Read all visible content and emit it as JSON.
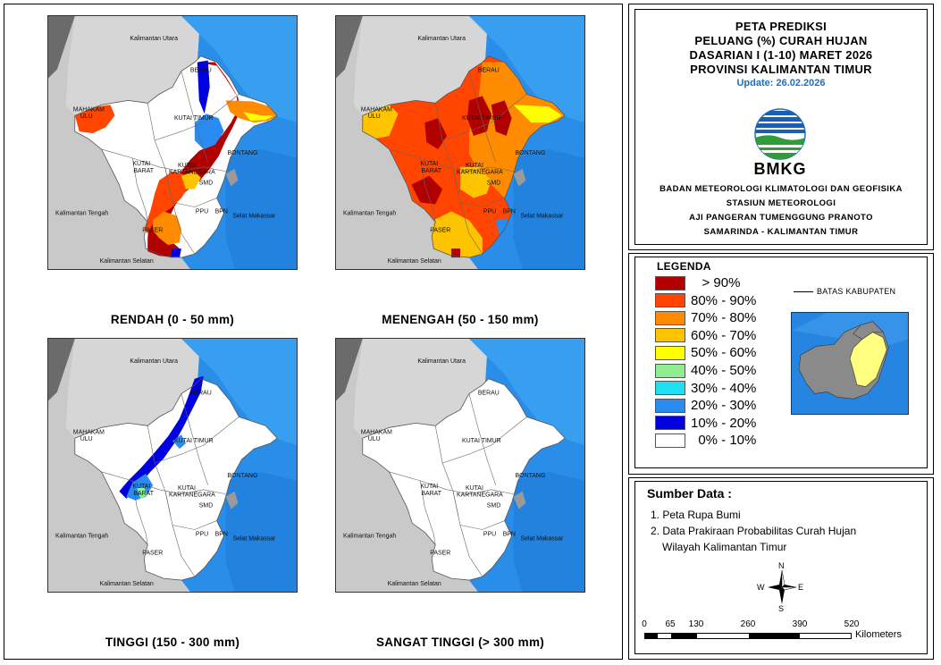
{
  "maps": [
    {
      "title": "RENDAH (0 - 50 mm)",
      "scheme": "rendah"
    },
    {
      "title": "MENENGAH (50 - 150 mm)",
      "scheme": "menengah"
    },
    {
      "title": "TINGGI (150 - 300 mm)",
      "scheme": "tinggi"
    },
    {
      "title": "SANGAT TINGGI (> 300 mm)",
      "scheme": "sangat"
    }
  ],
  "map_labels": {
    "kaltara": "Kalimantan Utara",
    "berau": "BERAU",
    "mahakam_1": "MAHAKAM",
    "mahakam_2": "ULU",
    "kutai_timur": "KUTAI TIMUR",
    "bontang": "BONTANG",
    "kutai_kart_1": "KUTAI",
    "kutai_kart_2": "KARTANEGARA",
    "kutai_barat_1": "KUTAI",
    "kutai_barat_2": "BARAT",
    "smd": "SMD",
    "ppu": "PPU",
    "bpn": "BPN",
    "kalteng": "Kalimantan Tengah",
    "selat": "Selat Makassar",
    "paser": "PASER",
    "kalsel": "Kalimantan Selatan"
  },
  "title": {
    "line1": "PETA PREDIKSI",
    "line2": "PELUANG (%) CURAH HUJAN",
    "line3": "DASARIAN I (1-10) MARET 2026",
    "line4": "PROVINSI KALIMANTAN TIMUR",
    "update": "Update: 26.02.2026"
  },
  "logo_text": "BMKG",
  "agency": {
    "line1": "BADAN METEOROLOGI KLIMATOLOGI DAN GEOFISIKA",
    "line2": "STASIUN METEOROLOGI",
    "line3": "AJI PANGERAN TUMENGGUNG PRANOTO",
    "line4": "SAMARINDA - KALIMANTAN TIMUR"
  },
  "legend": {
    "title": "LEGENDA",
    "items": [
      {
        "label": "   > 90%",
        "color": "#b00000"
      },
      {
        "label": "80% - 90%",
        "color": "#ff4500"
      },
      {
        "label": "70% - 80%",
        "color": "#ff8c00"
      },
      {
        "label": "60% - 70%",
        "color": "#ffc400"
      },
      {
        "label": "50% - 60%",
        "color": "#ffff00"
      },
      {
        "label": "40% - 50%",
        "color": "#90ee90"
      },
      {
        "label": "30% - 40%",
        "color": "#1fe0f0"
      },
      {
        "label": "20% - 30%",
        "color": "#2a8cf0"
      },
      {
        "label": "10% - 20%",
        "color": "#0000e0"
      },
      {
        "label": "  0% - 10%",
        "color": "#ffffff"
      }
    ],
    "boundary_label": "BATAS KABUPATEN"
  },
  "sources": {
    "title": "Sumber Data :",
    "item1": "1.  Peta Rupa Bumi",
    "item2": "2.  Data Prakiraan Probabilitas Curah Hujan",
    "item2b": "Wilayah Kalimantan Timur"
  },
  "compass": {
    "n": "N",
    "s": "S",
    "e": "E",
    "w": "W"
  },
  "scale": {
    "ticks": [
      "0",
      "65",
      "130",
      "260",
      "390",
      "520"
    ],
    "unit": "Kilometers"
  }
}
